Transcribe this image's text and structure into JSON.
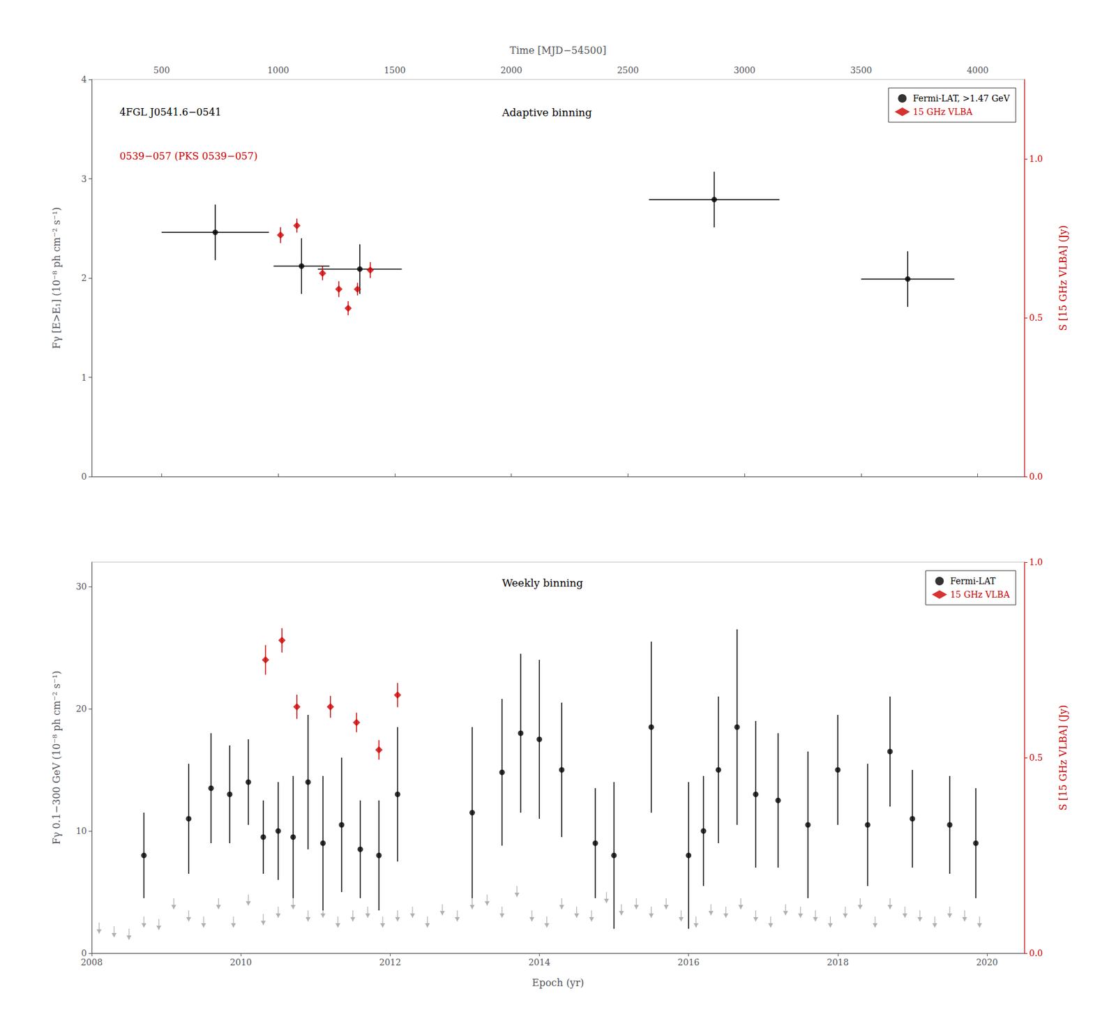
{
  "chart_data": [
    {
      "type": "scatter",
      "title": "Adaptive binning",
      "annotations": [
        {
          "text": "4FGL J0541.6−0541",
          "color": "#000000"
        },
        {
          "text": "0539−057 (PKS 0539−057)",
          "color": "#cc0000"
        }
      ],
      "xlabel": "Time [MJD−54500]",
      "ylabel": "Fγ [E>E₁] (10⁻⁸ ph cm⁻² s⁻¹)",
      "y2label": "S [15 GHz VLBA] (Jy)",
      "xlim": [
        200,
        4200
      ],
      "xticks": [
        500,
        1000,
        1500,
        2000,
        2500,
        3000,
        3500,
        4000
      ],
      "ylim": [
        0,
        4
      ],
      "yticks": [
        0,
        1,
        2,
        3,
        4
      ],
      "y2lim": [
        0,
        1.25
      ],
      "y2ticks": [
        {
          "value": 0,
          "label": "0.0"
        },
        {
          "value": 0.5,
          "label": "0.5"
        },
        {
          "value": 1,
          "label": "1.0"
        }
      ],
      "grid": false,
      "legend": "upper right",
      "series": [
        {
          "name": "Fermi-LAT, >1.47 GeV",
          "color": "#000000",
          "marker": "circle",
          "x": [
            730,
            1100,
            1350,
            2870,
            3700
          ],
          "values": [
            2.46,
            2.12,
            2.09,
            2.79,
            1.99
          ],
          "xerr_lo": [
            230,
            120,
            180,
            280,
            200
          ],
          "xerr_hi": [
            230,
            120,
            180,
            280,
            200
          ],
          "yerr_lo": [
            0.28,
            0.28,
            0.25,
            0.28,
            0.28
          ],
          "yerr_hi": [
            0.28,
            0.28,
            0.25,
            0.28,
            0.28
          ]
        },
        {
          "name": "15 GHz VLBA",
          "color": "#cc0000",
          "marker": "diamond",
          "axis": "y2",
          "x": [
            1010,
            1080,
            1190,
            1260,
            1300,
            1340,
            1395
          ],
          "values": [
            0.76,
            0.79,
            0.64,
            0.59,
            0.53,
            0.59,
            0.65
          ],
          "yerr": [
            0.025,
            0.022,
            0.022,
            0.025,
            0.022,
            0.02,
            0.025
          ]
        }
      ]
    },
    {
      "type": "scatter",
      "title": "Weekly binning",
      "xlabel": "Epoch (yr)",
      "ylabel": "Fγ 0.1−300 GeV (10⁻⁸ ph cm⁻² s⁻¹)",
      "y2label": "S [15 GHz VLBA] (Jy)",
      "xlim": [
        2008.0,
        2020.5
      ],
      "xticks": [
        2008,
        2010,
        2012,
        2014,
        2016,
        2018,
        2020
      ],
      "ylim": [
        0,
        32
      ],
      "yticks": [
        0,
        10,
        20,
        30
      ],
      "y2lim": [
        0,
        1.0
      ],
      "y2ticks": [
        {
          "value": 0,
          "label": "0.0"
        },
        {
          "value": 0.5,
          "label": "0.5"
        },
        {
          "value": 1,
          "label": "1.0"
        }
      ],
      "grid": false,
      "legend": "upper right",
      "series": [
        {
          "type": "upper_limit",
          "color": "#b0b0b0",
          "marker": "arrow",
          "x": [
            2008.1,
            2008.3,
            2008.5,
            2008.7,
            2008.9,
            2009.1,
            2009.3,
            2009.5,
            2009.7,
            2009.9,
            2010.1,
            2010.3,
            2010.5,
            2010.7,
            2010.9,
            2011.1,
            2011.3,
            2011.5,
            2011.7,
            2011.9,
            2012.1,
            2012.3,
            2012.5,
            2012.7,
            2012.9,
            2013.1,
            2013.3,
            2013.5,
            2013.7,
            2013.9,
            2014.1,
            2014.3,
            2014.5,
            2014.7,
            2014.9,
            2015.1,
            2015.3,
            2015.5,
            2015.7,
            2015.9,
            2016.1,
            2016.3,
            2016.5,
            2016.7,
            2016.9,
            2017.1,
            2017.3,
            2017.5,
            2017.7,
            2017.9,
            2018.1,
            2018.3,
            2018.5,
            2018.7,
            2018.9,
            2019.1,
            2019.3,
            2019.5,
            2019.7,
            2019.9
          ],
          "values": [
            2.5,
            2.2,
            2.0,
            3.0,
            2.8,
            4.5,
            3.5,
            3.0,
            4.5,
            3.0,
            4.8,
            3.2,
            3.8,
            4.5,
            3.5,
            3.8,
            3.0,
            3.5,
            3.8,
            3.0,
            3.5,
            3.8,
            3.0,
            4.0,
            3.5,
            4.5,
            4.8,
            3.8,
            5.5,
            3.5,
            3.0,
            4.5,
            3.8,
            3.5,
            5.0,
            4.0,
            4.5,
            3.8,
            4.5,
            3.5,
            3.0,
            4.0,
            3.8,
            4.5,
            3.5,
            3.0,
            4.0,
            3.8,
            3.5,
            3.0,
            3.8,
            4.5,
            3.0,
            4.5,
            3.8,
            3.5,
            3.0,
            3.8,
            3.5,
            3.0
          ]
        },
        {
          "name": "Fermi-LAT",
          "color": "#000000",
          "marker": "circle",
          "x": [
            2008.7,
            2009.3,
            2009.6,
            2009.85,
            2010.1,
            2010.3,
            2010.5,
            2010.7,
            2010.9,
            2011.1,
            2011.35,
            2011.6,
            2011.85,
            2012.1,
            2013.1,
            2013.5,
            2013.75,
            2014.0,
            2014.3,
            2014.75,
            2015.0,
            2015.5,
            2016.0,
            2016.2,
            2016.4,
            2016.65,
            2016.9,
            2017.2,
            2017.6,
            2018.0,
            2018.4,
            2018.7,
            2019.0,
            2019.5,
            2019.85
          ],
          "values": [
            8.0,
            11.0,
            13.5,
            13.0,
            14.0,
            9.5,
            10.0,
            9.5,
            14.0,
            9.0,
            10.5,
            8.5,
            8.0,
            13.0,
            11.5,
            14.8,
            18.0,
            17.5,
            15.0,
            9.0,
            8.0,
            18.5,
            8.0,
            10.0,
            15.0,
            18.5,
            13.0,
            12.5,
            10.5,
            15.0,
            10.5,
            16.5,
            11.0,
            10.5,
            9.0
          ],
          "yerr_lo": [
            3.5,
            4.5,
            4.5,
            4.0,
            3.5,
            3.0,
            4.0,
            5.0,
            5.5,
            5.5,
            5.5,
            4.0,
            4.5,
            5.5,
            7.0,
            6.0,
            6.5,
            6.5,
            5.5,
            4.5,
            6.0,
            7.0,
            6.0,
            4.5,
            6.0,
            8.0,
            6.0,
            5.5,
            6.0,
            4.5,
            5.0,
            4.5,
            4.0,
            4.0,
            4.5
          ],
          "yerr_hi": [
            3.5,
            4.5,
            4.5,
            4.0,
            3.5,
            3.0,
            4.0,
            5.0,
            5.5,
            5.5,
            5.5,
            4.0,
            4.5,
            5.5,
            7.0,
            6.0,
            6.5,
            6.5,
            5.5,
            4.5,
            6.0,
            7.0,
            6.0,
            4.5,
            6.0,
            8.0,
            6.0,
            5.5,
            6.0,
            4.5,
            5.0,
            4.5,
            4.0,
            4.0,
            4.5
          ]
        },
        {
          "name": "15 GHz VLBA",
          "color": "#cc0000",
          "marker": "diamond",
          "axis": "y2",
          "x": [
            2010.33,
            2010.55,
            2010.75,
            2011.2,
            2011.55,
            2011.85,
            2012.1
          ],
          "values": [
            0.75,
            0.8,
            0.63,
            0.63,
            0.59,
            0.52,
            0.66
          ],
          "yerr": [
            0.038,
            0.031,
            0.031,
            0.028,
            0.025,
            0.025,
            0.031
          ]
        }
      ]
    }
  ]
}
